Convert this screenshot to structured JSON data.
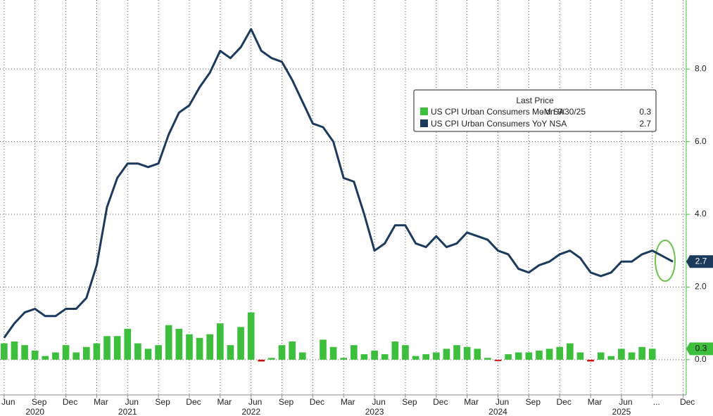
{
  "chart_data": {
    "type": "combo",
    "legend_title": "Last Price",
    "series": [
      {
        "name": "US CPI Urban Consumers MoM SA",
        "legend_note": "-  on 9/30/25",
        "type": "bar",
        "color": "#3dbf3d",
        "negative_color": "#cc1111",
        "last_value": 0.3,
        "x": [
          0,
          1,
          2,
          3,
          4,
          5,
          6,
          7,
          8,
          9,
          10,
          11,
          12,
          13,
          14,
          15,
          16,
          17,
          18,
          19,
          20,
          21,
          22,
          23,
          24,
          25,
          26,
          27,
          28,
          29,
          30,
          31,
          32,
          33,
          34,
          35,
          36,
          37,
          38,
          39,
          40,
          41,
          42,
          43,
          44,
          45,
          46,
          47,
          48,
          49,
          50,
          51,
          52,
          53,
          54,
          55,
          56,
          57,
          58,
          59,
          60,
          61,
          62,
          63
        ],
        "values": [
          0.45,
          0.5,
          0.4,
          0.25,
          0.1,
          0.2,
          0.4,
          0.2,
          0.35,
          0.45,
          0.65,
          0.65,
          0.85,
          0.45,
          0.3,
          0.4,
          0.95,
          0.85,
          0.7,
          0.6,
          0.7,
          1.0,
          0.4,
          0.9,
          1.3,
          -0.05,
          0.05,
          0.4,
          0.5,
          0.2,
          0,
          0.55,
          0.35,
          0.05,
          0.4,
          0.15,
          0.25,
          0.15,
          0.5,
          0.4,
          0.1,
          0.15,
          0.2,
          0.3,
          0.4,
          0.35,
          0.3,
          0.05,
          -0.02,
          0.15,
          0.2,
          0.2,
          0.25,
          0.3,
          0.35,
          0.45,
          0.2,
          -0.05,
          0.2,
          0.1,
          0.3,
          0.2,
          0.35,
          0.3
        ]
      },
      {
        "name": "US CPI Urban Consumers YoY NSA",
        "type": "line",
        "color": "#1b3a5c",
        "last_value": 2.7,
        "x": [
          0,
          1,
          2,
          3,
          4,
          5,
          6,
          7,
          8,
          9,
          10,
          11,
          12,
          13,
          14,
          15,
          16,
          17,
          18,
          19,
          20,
          21,
          22,
          23,
          24,
          25,
          26,
          27,
          28,
          29,
          30,
          31,
          32,
          33,
          34,
          35,
          36,
          37,
          38,
          39,
          40,
          41,
          42,
          43,
          44,
          45,
          46,
          47,
          48,
          49,
          50,
          51,
          52,
          53,
          54,
          55,
          56,
          57,
          58,
          59,
          60,
          61,
          62,
          63,
          65
        ],
        "values": [
          0.6,
          1.0,
          1.3,
          1.4,
          1.2,
          1.2,
          1.4,
          1.4,
          1.7,
          2.6,
          4.2,
          5.0,
          5.4,
          5.4,
          5.3,
          5.4,
          6.2,
          6.8,
          7.0,
          7.5,
          7.9,
          8.5,
          8.3,
          8.6,
          9.1,
          8.5,
          8.3,
          8.2,
          7.7,
          7.1,
          6.5,
          6.4,
          6.0,
          5.0,
          4.9,
          4.0,
          3.0,
          3.2,
          3.7,
          3.7,
          3.2,
          3.1,
          3.4,
          3.1,
          3.2,
          3.5,
          3.4,
          3.3,
          3.0,
          2.9,
          2.5,
          2.4,
          2.6,
          2.7,
          2.9,
          3.0,
          2.8,
          2.4,
          2.3,
          2.4,
          2.7,
          2.7,
          2.9,
          3.0,
          2.7
        ]
      }
    ],
    "xlim": [
      -0.4,
      66.3
    ],
    "xticks": [
      {
        "value": 0,
        "label": "Jun"
      },
      {
        "value": 3,
        "label": "Sep"
      },
      {
        "value": 6,
        "label": "Dec"
      },
      {
        "value": 9,
        "label": "Mar"
      },
      {
        "value": 12,
        "label": "Jun"
      },
      {
        "value": 15,
        "label": "Sep"
      },
      {
        "value": 18,
        "label": "Dec"
      },
      {
        "value": 21,
        "label": "Mar"
      },
      {
        "value": 24,
        "label": "Jun"
      },
      {
        "value": 27,
        "label": "Sep"
      },
      {
        "value": 30,
        "label": "Dec"
      },
      {
        "value": 33,
        "label": "Mar"
      },
      {
        "value": 36,
        "label": "Jun"
      },
      {
        "value": 39,
        "label": "Sep"
      },
      {
        "value": 42,
        "label": "Dec"
      },
      {
        "value": 45,
        "label": "Mar"
      },
      {
        "value": 48,
        "label": "Jun"
      },
      {
        "value": 51,
        "label": "Sep"
      },
      {
        "value": 54,
        "label": "Dec"
      },
      {
        "value": 57,
        "label": "Mar"
      },
      {
        "value": 60,
        "label": "Jun"
      },
      {
        "value": 63,
        "label": "..."
      },
      {
        "value": 66,
        "label": "Dec"
      }
    ],
    "year_labels": [
      {
        "value": 3,
        "label": "2020"
      },
      {
        "value": 12,
        "label": "2021"
      },
      {
        "value": 24,
        "label": "2022"
      },
      {
        "value": 36,
        "label": "2023"
      },
      {
        "value": 48,
        "label": "2024"
      },
      {
        "value": 60,
        "label": "2025"
      }
    ],
    "ylim": [
      -0.97,
      9.9
    ],
    "yticks": [
      {
        "value": 0,
        "label": "0.0"
      },
      {
        "value": 2,
        "label": "2.0"
      },
      {
        "value": 4,
        "label": "4.0"
      },
      {
        "value": 6,
        "label": "6.0"
      },
      {
        "value": 8,
        "label": "8.0"
      }
    ],
    "grid": true
  }
}
